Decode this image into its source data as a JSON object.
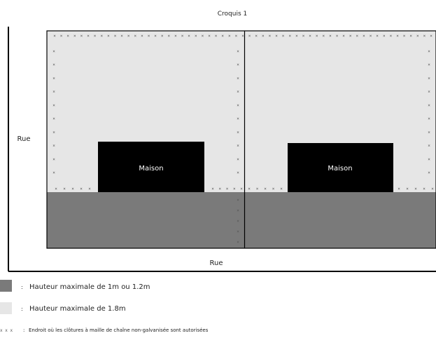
{
  "diagram": {
    "title": "Croquis 1",
    "street_left": "Rue",
    "street_bottom": "Rue",
    "lots": [
      {
        "house_label": "Maison"
      },
      {
        "house_label": "Maison"
      }
    ]
  },
  "legend": {
    "items": [
      {
        "symbol": "dark-swatch",
        "separator": ":",
        "text": "Hauteur maximale de 1m ou 1.2m"
      },
      {
        "symbol": "light-swatch",
        "separator": ":",
        "text": "Hauteur maximale de 1.8m"
      },
      {
        "symbol": "x-marks",
        "marker": "x x x",
        "separator": ":",
        "text": "Endroit où les clôtures à maille de chaîne non-galvanisée sont autorisées"
      }
    ]
  },
  "colors": {
    "light_zone": "#e6e6e6",
    "dark_zone": "#7a7a7a",
    "house": "#000000",
    "house_text": "#ffffff",
    "outline": "#000000"
  }
}
